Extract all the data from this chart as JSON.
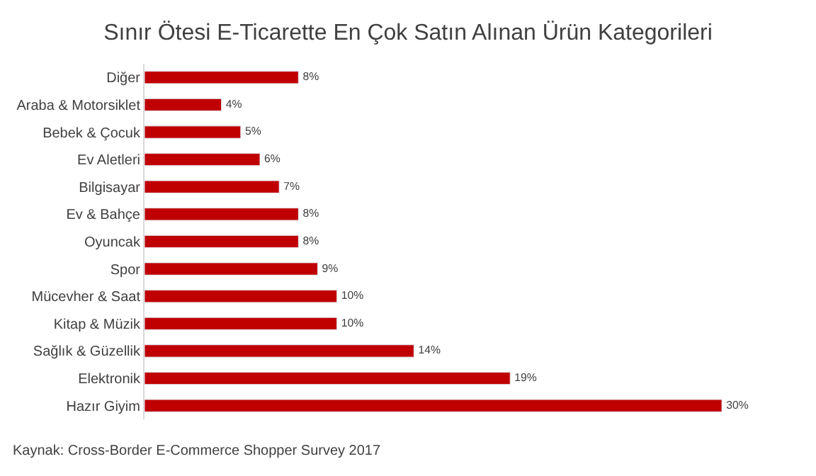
{
  "chart_data": {
    "type": "bar",
    "orientation": "horizontal",
    "title": "Sınır Ötesi E-Ticarette En Çok Satın Alınan Ürün Kategorileri",
    "categories": [
      "Diğer",
      "Araba & Motorsiklet",
      "Bebek & Çocuk",
      "Ev Aletleri",
      "Bilgisayar",
      "Ev & Bahçe",
      "Oyuncak",
      "Spor",
      "Mücevher & Saat",
      "Kitap & Müzik",
      "Sağlık & Güzellik",
      "Elektronik",
      "Hazır Giyim"
    ],
    "values": [
      8,
      4,
      5,
      6,
      7,
      8,
      8,
      9,
      10,
      10,
      14,
      19,
      30
    ],
    "value_labels": [
      "8%",
      "4%",
      "5%",
      "6%",
      "7%",
      "8%",
      "8%",
      "9%",
      "10%",
      "10%",
      "14%",
      "19%",
      "30%"
    ],
    "color": "#c00000",
    "tick_labels": "y",
    "legend": false,
    "annotations": [
      "Kaynak: Cross-Border E-Commerce Shopper Survey 2017"
    ]
  }
}
